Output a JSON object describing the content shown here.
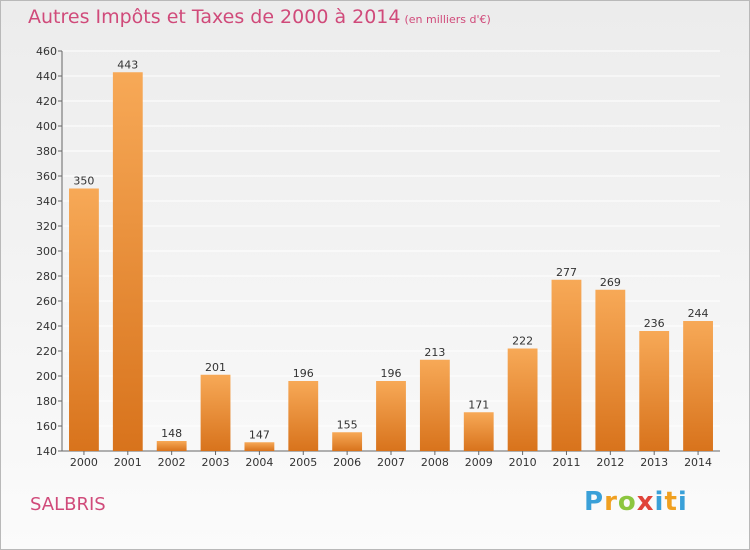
{
  "header": {
    "title": "Autres Impôts et Taxes de 2000 à 2014",
    "unit": "(en milliers d'€)"
  },
  "footer": {
    "commune": "SALBRIS",
    "logo_text": "Proxiti",
    "logo_letters": [
      "P",
      "r",
      "o",
      "x",
      "i",
      "t",
      "i"
    ]
  },
  "colors": {
    "bar_top": "#f7a957",
    "bar_bottom": "#d8731c",
    "title": "#d04a7a",
    "grid": "#ffffff"
  },
  "chart_data": {
    "type": "bar",
    "title": "Autres Impôts et Taxes de 2000 à 2014",
    "subtitle": "(en milliers d'€)",
    "xlabel": "",
    "ylabel": "",
    "categories": [
      "2000",
      "2001",
      "2002",
      "2003",
      "2004",
      "2005",
      "2006",
      "2007",
      "2008",
      "2009",
      "2010",
      "2011",
      "2012",
      "2013",
      "2014"
    ],
    "values": [
      350,
      443,
      148,
      201,
      147,
      196,
      155,
      196,
      213,
      171,
      222,
      277,
      269,
      236,
      244
    ],
    "ylim": [
      140,
      460
    ],
    "yticks": [
      140,
      160,
      180,
      200,
      220,
      240,
      260,
      280,
      300,
      320,
      340,
      360,
      380,
      400,
      420,
      440,
      460
    ],
    "grid": true,
    "legend": "none"
  }
}
